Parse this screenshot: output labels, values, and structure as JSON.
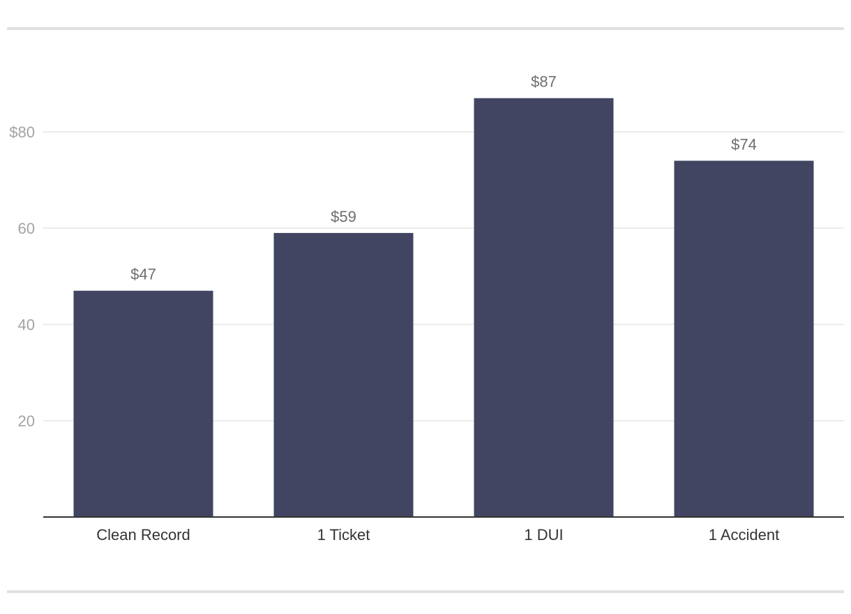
{
  "chart_data": {
    "type": "bar",
    "categories": [
      "Clean Record",
      "1 Ticket",
      "1 DUI",
      "1 Accident"
    ],
    "values": [
      47,
      59,
      87,
      74
    ],
    "data_labels": [
      "$47",
      "$59",
      "$87",
      "$74"
    ],
    "title": "",
    "xlabel": "",
    "ylabel": "",
    "ylim": [
      0,
      100
    ],
    "yticks": [
      20,
      40,
      60,
      80
    ],
    "ytick_labels": [
      "20",
      "40",
      "60",
      "$80"
    ],
    "grid": true,
    "legend": "none",
    "colors": {
      "bar": "#414561",
      "grid": "#e6e6e6",
      "axis": "#333333",
      "rule": "#e1e1e1"
    }
  }
}
